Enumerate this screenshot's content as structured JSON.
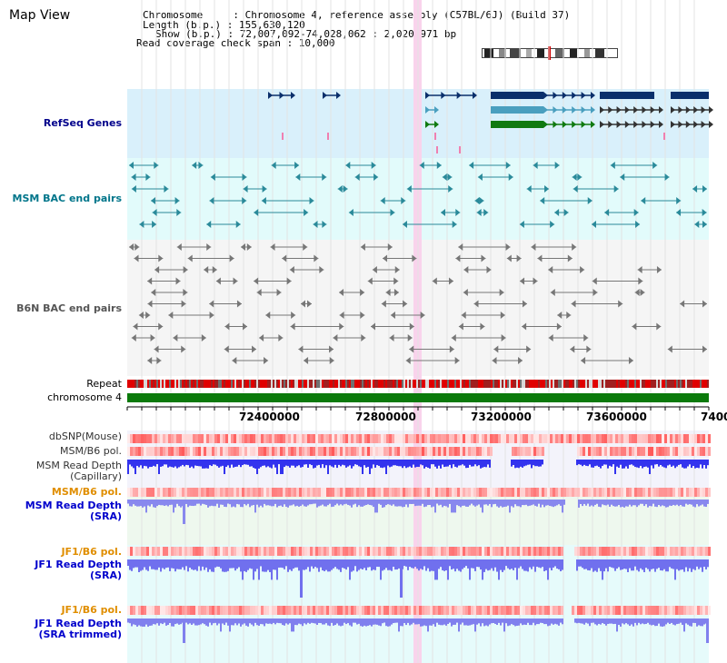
{
  "page_title": "Map View",
  "header": {
    "chromosome_line": "Chromosome     : Chromosome 4, reference assembly (C57BL/6J) (Build 37)",
    "length_line": "Length (b.p.) : 155,630,120",
    "show_line": "Show (b.p.) : 72,007,092-74,028,062 : 2,020,971 bp",
    "coverage_line": "Read coverage check span : 10,000"
  },
  "tracks": {
    "refseq": "RefSeq Genes",
    "msm_bac": "MSM BAC end pairs",
    "b6n_bac": "B6N BAC end pairs",
    "repeat": "Repeat",
    "chromosome": "chromosome 4",
    "dbsnp": "dbSNP(Mouse)",
    "msm_b6_pol_1": "MSM/B6 pol.",
    "msm_read_depth_cap_1": "MSM Read Depth",
    "msm_read_depth_cap_2": "(Capillary)",
    "msm_b6_pol_2": "MSM/B6 pol.",
    "msm_read_depth_sra_1": "MSM Read Depth",
    "msm_read_depth_sra_2": "(SRA)",
    "jf1_b6_pol_1": "JF1/B6 pol.",
    "jf1_read_depth_sra_1": "JF1 Read Depth",
    "jf1_read_depth_sra_2": "(SRA)",
    "jf1_b6_pol_2": "JF1/B6 pol.",
    "jf1_read_depth_trim_1": "JF1 Read Depth",
    "jf1_read_depth_trim_2": "(SRA trimmed)"
  },
  "axis": {
    "ticks": [
      "72400000",
      "72800000",
      "73200000",
      "73600000",
      "7400"
    ]
  },
  "colors": {
    "refseq_bg": "#d9f0fb",
    "msm_bac_bg": "#e2fbfb",
    "b6n_bac_bg": "#f5f5f5",
    "highlight": "#f9d3ec",
    "chromosome_green": "#0b7a0b",
    "gene_navy": "#0a2f6b",
    "gene_teal": "#4a9fbf",
    "gene_green": "#107a10",
    "msm_label": "#00758a",
    "b6n_label": "#555555",
    "refseq_label": "#00008b",
    "pol_orange": "#e08e00",
    "depth_blue": "#0000cc"
  }
}
